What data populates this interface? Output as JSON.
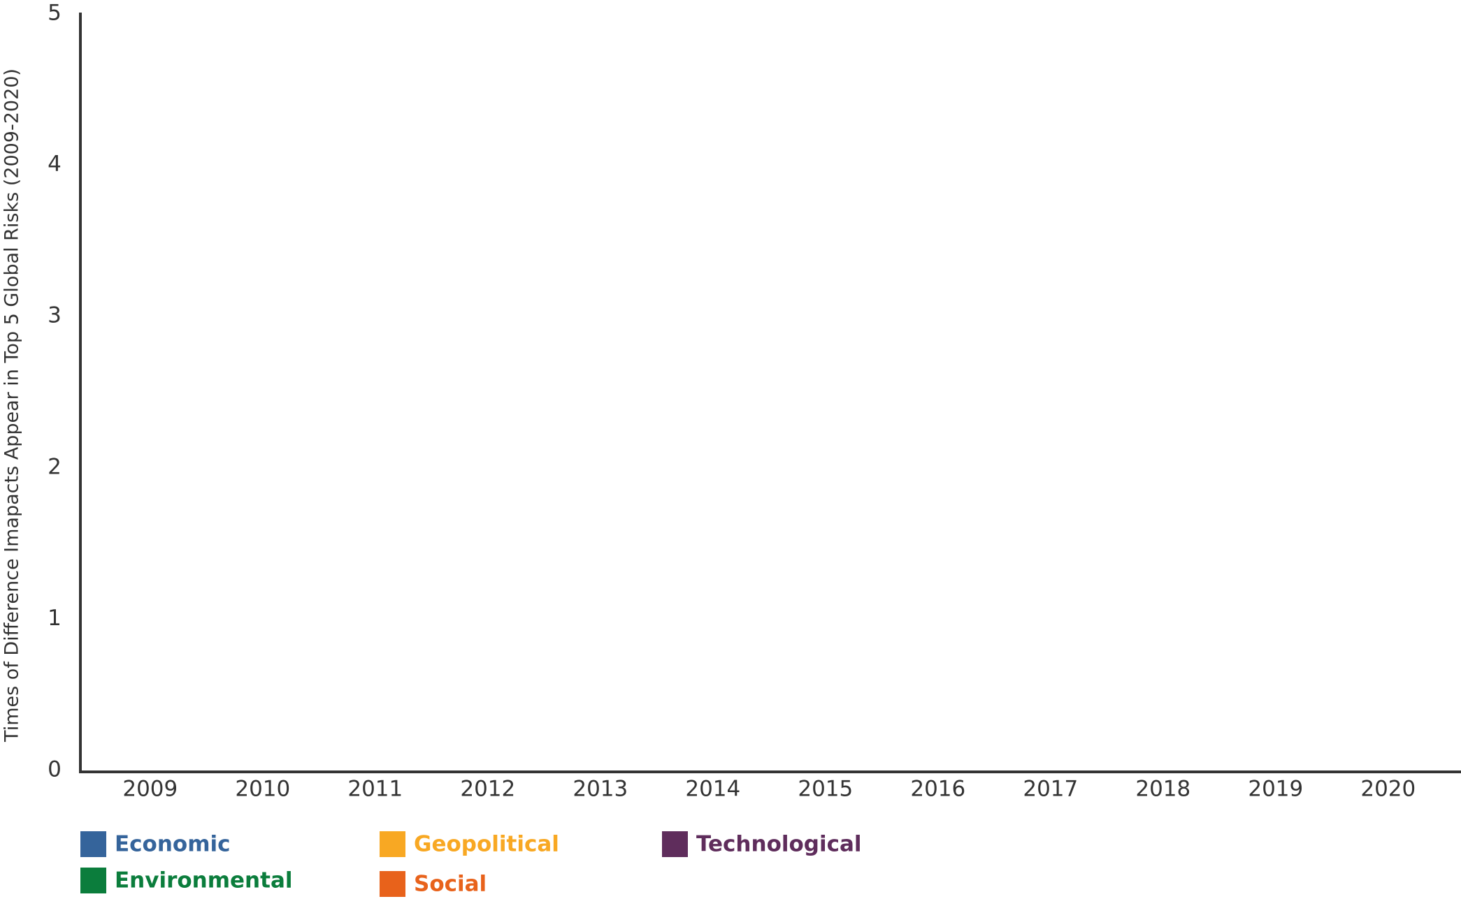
{
  "chart_data": {
    "type": "bar",
    "y_label": "Times of Difference Imapacts Appear in Top 5 Global Risks  (2009-2020)",
    "categories": [
      "2009",
      "2010",
      "2011",
      "2012",
      "2013",
      "2014",
      "2015",
      "2016",
      "2017",
      "2018",
      "2019",
      "2020"
    ],
    "series": [
      {
        "name": "Economic",
        "color": "#35649b"
      },
      {
        "name": "Environmental",
        "color": "#0b7d3c"
      },
      {
        "name": "Geopolitical",
        "color": "#f8a823"
      },
      {
        "name": "Social",
        "color": "#e8621b"
      },
      {
        "name": "Technological",
        "color": "#5f2d5c"
      }
    ],
    "ylim": [
      0,
      5
    ],
    "yticks": [
      0,
      1,
      2,
      3,
      4,
      5
    ],
    "grid": false
  }
}
